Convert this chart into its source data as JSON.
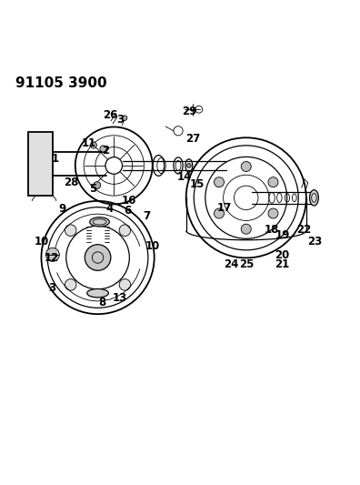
{
  "title": "91105 3900",
  "background_color": "#ffffff",
  "line_color": "#000000",
  "text_color": "#000000",
  "title_fontsize": 11,
  "label_fontsize": 8.5,
  "figsize": [
    3.96,
    5.33
  ],
  "dpi": 100
}
